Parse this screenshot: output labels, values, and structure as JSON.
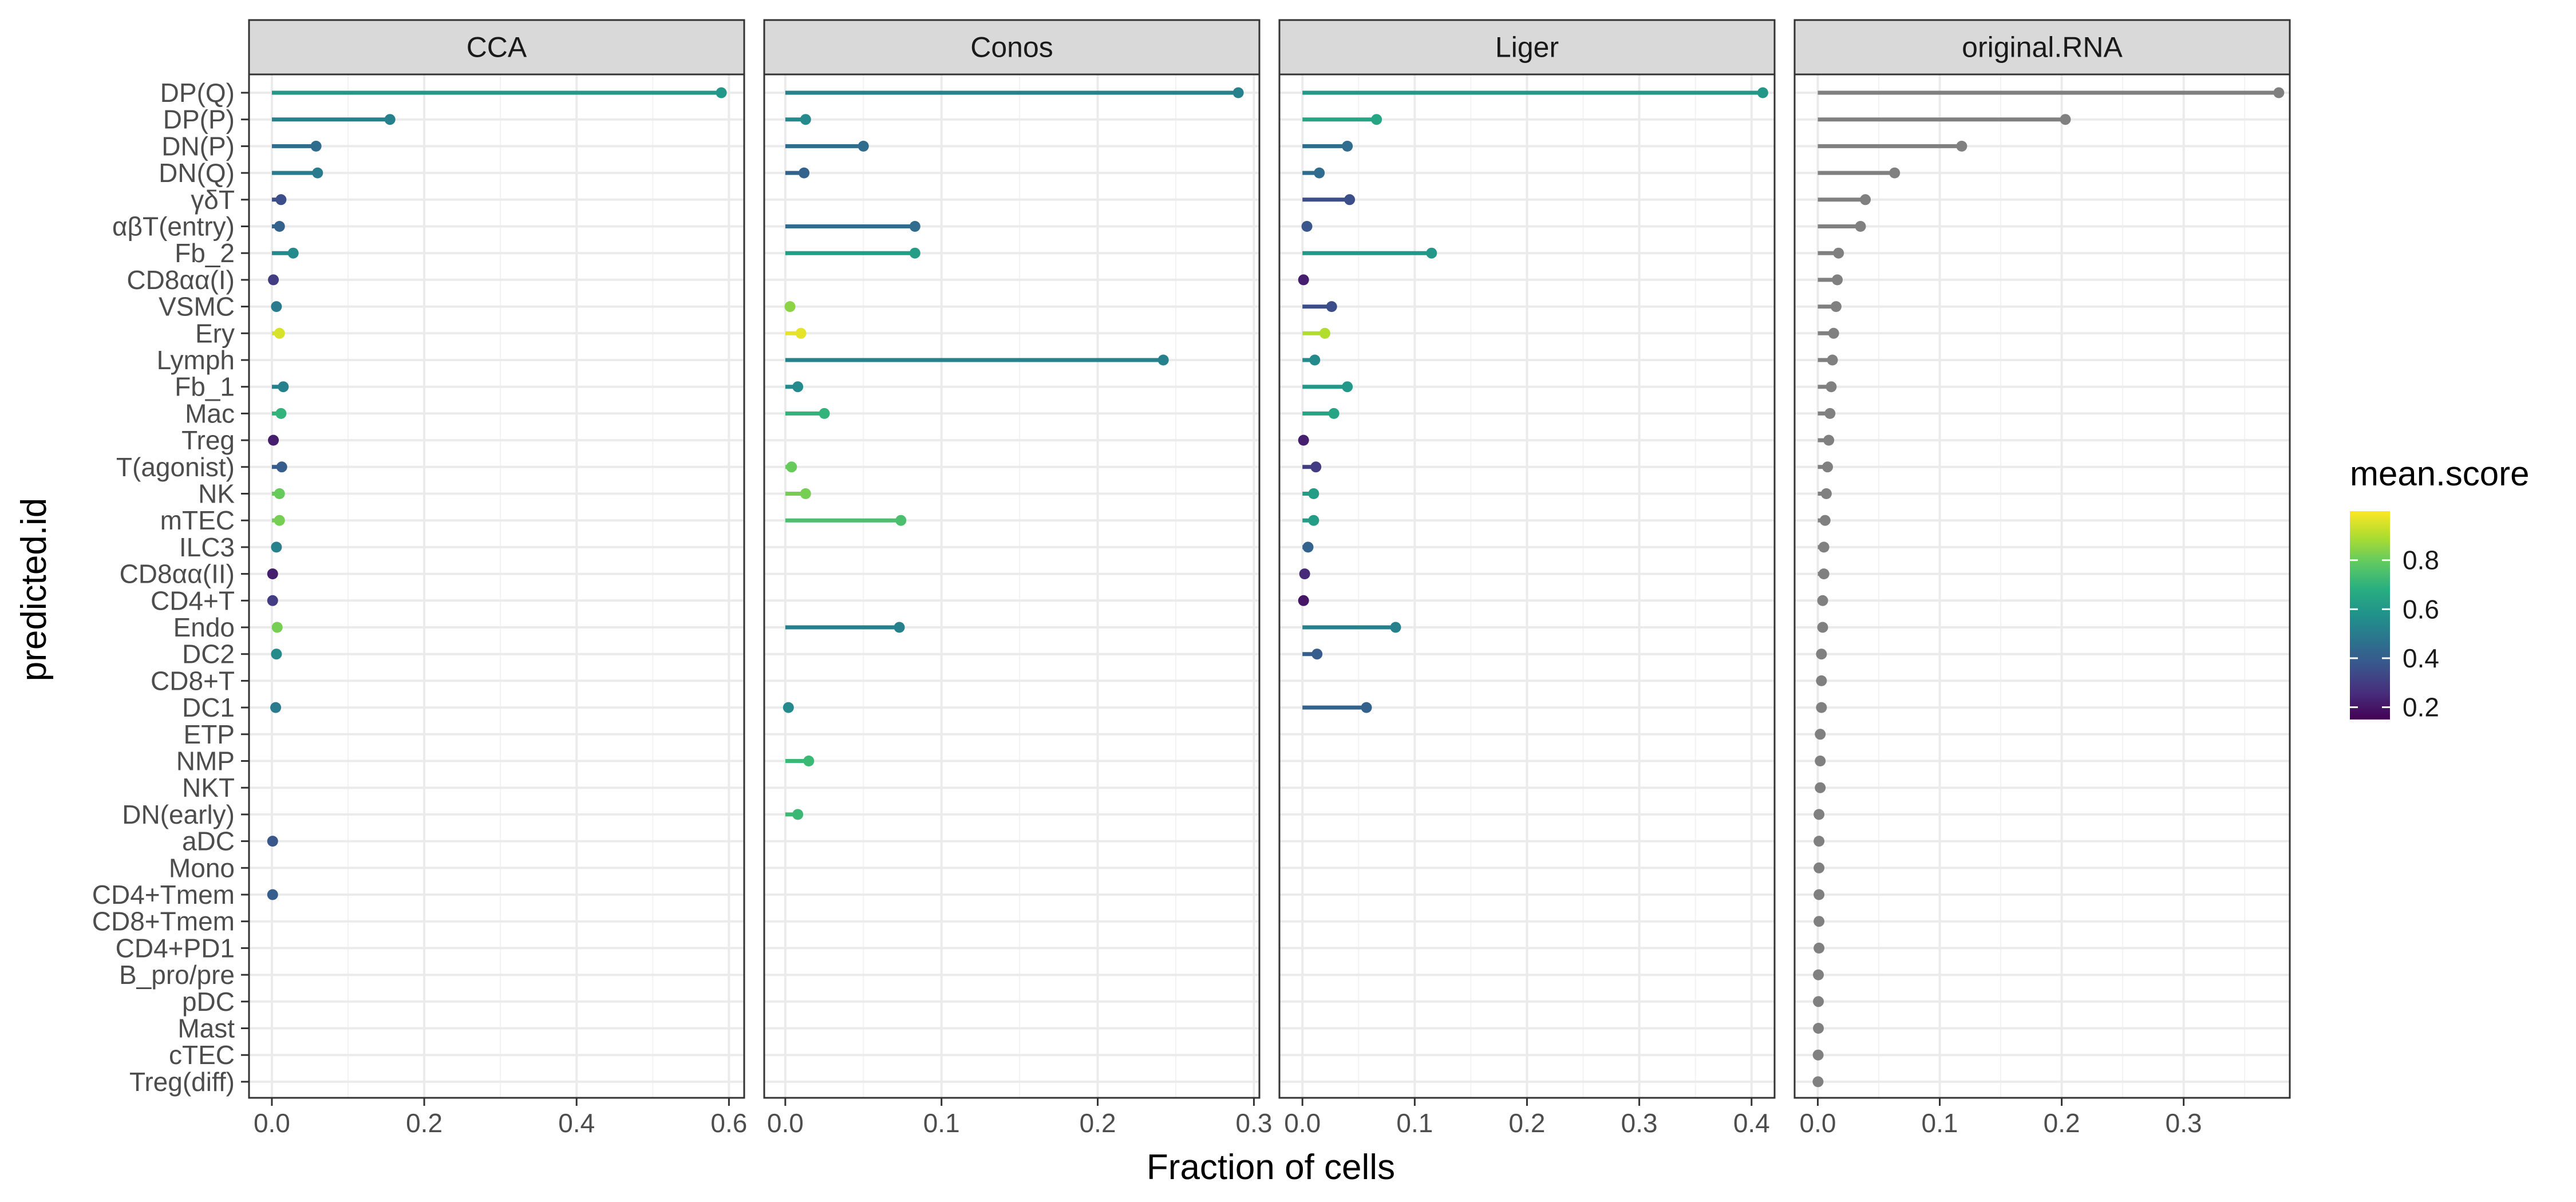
{
  "chart_data": {
    "type": "lollipop",
    "xlabel": "Fraction of cells",
    "ylabel": "predicted.id",
    "legend": {
      "title": "mean.score",
      "placement": "right",
      "ticks": [
        0.2,
        0.4,
        0.6,
        0.8
      ],
      "range": [
        0.15,
        1.0
      ]
    },
    "grid": true,
    "categories": [
      "DP(Q)",
      "DP(P)",
      "DN(P)",
      "DN(Q)",
      "γδT",
      "αβT(entry)",
      "Fb_2",
      "CD8αα(I)",
      "VSMC",
      "Ery",
      "Lymph",
      "Fb_1",
      "Mac",
      "Treg",
      "T(agonist)",
      "NK",
      "mTEC",
      "ILC3",
      "CD8αα(II)",
      "CD4+T",
      "Endo",
      "DC2",
      "CD8+T",
      "DC1",
      "ETP",
      "NMP",
      "NKT",
      "DN(early)",
      "aDC",
      "Mono",
      "CD4+Tmem",
      "CD8+Tmem",
      "CD4+PD1",
      "B_pro/pre",
      "pDC",
      "Mast",
      "cTEC",
      "Treg(diff)"
    ],
    "panels": [
      {
        "name": "CCA",
        "xlim": [
          -0.03,
          0.62
        ],
        "xticks": [
          0.0,
          0.2,
          0.4,
          0.6
        ],
        "xtick_labels": [
          "0.0",
          "0.2",
          "0.4",
          "0.6"
        ],
        "points": [
          {
            "y": "DP(Q)",
            "x": 0.59,
            "score": 0.6
          },
          {
            "y": "DP(P)",
            "x": 0.155,
            "score": 0.52
          },
          {
            "y": "DN(P)",
            "x": 0.058,
            "score": 0.45
          },
          {
            "y": "DN(Q)",
            "x": 0.06,
            "score": 0.5
          },
          {
            "y": "γδT",
            "x": 0.012,
            "score": 0.35
          },
          {
            "y": "αβT(entry)",
            "x": 0.01,
            "score": 0.42
          },
          {
            "y": "Fb_2",
            "x": 0.028,
            "score": 0.55
          },
          {
            "y": "CD8αα(I)",
            "x": 0.002,
            "score": 0.3
          },
          {
            "y": "VSMC",
            "x": 0.006,
            "score": 0.5
          },
          {
            "y": "Ery",
            "x": 0.01,
            "score": 0.95
          },
          {
            "y": "Fb_1",
            "x": 0.015,
            "score": 0.52
          },
          {
            "y": "Mac",
            "x": 0.012,
            "score": 0.7
          },
          {
            "y": "Treg",
            "x": 0.002,
            "score": 0.22
          },
          {
            "y": "T(agonist)",
            "x": 0.013,
            "score": 0.4
          },
          {
            "y": "NK",
            "x": 0.01,
            "score": 0.8
          },
          {
            "y": "mTEC",
            "x": 0.01,
            "score": 0.82
          },
          {
            "y": "ILC3",
            "x": 0.006,
            "score": 0.52
          },
          {
            "y": "CD8αα(II)",
            "x": 0.001,
            "score": 0.22
          },
          {
            "y": "CD4+T",
            "x": 0.001,
            "score": 0.3
          },
          {
            "y": "Endo",
            "x": 0.007,
            "score": 0.82
          },
          {
            "y": "DC2",
            "x": 0.006,
            "score": 0.55
          },
          {
            "y": "DC1",
            "x": 0.005,
            "score": 0.5
          },
          {
            "y": "aDC",
            "x": 0.001,
            "score": 0.38
          },
          {
            "y": "CD4+Tmem",
            "x": 0.001,
            "score": 0.4
          }
        ]
      },
      {
        "name": "Conos",
        "xlim": [
          -0.0135,
          0.3035
        ],
        "xticks": [
          0.0,
          0.1,
          0.2,
          0.3
        ],
        "xtick_labels": [
          "0.0",
          "0.1",
          "0.2",
          "0.3"
        ],
        "points": [
          {
            "y": "DP(Q)",
            "x": 0.29,
            "score": 0.52
          },
          {
            "y": "DP(P)",
            "x": 0.013,
            "score": 0.55
          },
          {
            "y": "DN(P)",
            "x": 0.05,
            "score": 0.45
          },
          {
            "y": "DN(Q)",
            "x": 0.012,
            "score": 0.42
          },
          {
            "y": "αβT(entry)",
            "x": 0.083,
            "score": 0.45
          },
          {
            "y": "Fb_2",
            "x": 0.083,
            "score": 0.62
          },
          {
            "y": "VSMC",
            "x": 0.003,
            "score": 0.85
          },
          {
            "y": "Ery",
            "x": 0.01,
            "score": 0.97
          },
          {
            "y": "Lymph",
            "x": 0.242,
            "score": 0.52
          },
          {
            "y": "Fb_1",
            "x": 0.008,
            "score": 0.55
          },
          {
            "y": "Mac",
            "x": 0.025,
            "score": 0.7
          },
          {
            "y": "T(agonist)",
            "x": 0.004,
            "score": 0.8
          },
          {
            "y": "NK",
            "x": 0.013,
            "score": 0.82
          },
          {
            "y": "mTEC",
            "x": 0.074,
            "score": 0.75
          },
          {
            "y": "Endo",
            "x": 0.073,
            "score": 0.52
          },
          {
            "y": "DC1",
            "x": 0.002,
            "score": 0.55
          },
          {
            "y": "NMP",
            "x": 0.015,
            "score": 0.72
          },
          {
            "y": "DN(early)",
            "x": 0.008,
            "score": 0.72
          }
        ]
      },
      {
        "name": "Liger",
        "xlim": [
          -0.0205,
          0.4205
        ],
        "xticks": [
          0.0,
          0.1,
          0.2,
          0.3,
          0.4
        ],
        "xtick_labels": [
          "0.0",
          "0.1",
          "0.2",
          "0.3",
          "0.4"
        ],
        "points": [
          {
            "y": "DP(Q)",
            "x": 0.41,
            "score": 0.6
          },
          {
            "y": "DP(P)",
            "x": 0.066,
            "score": 0.65
          },
          {
            "y": "DN(P)",
            "x": 0.04,
            "score": 0.45
          },
          {
            "y": "DN(Q)",
            "x": 0.015,
            "score": 0.45
          },
          {
            "y": "γδT",
            "x": 0.042,
            "score": 0.35
          },
          {
            "y": "αβT(entry)",
            "x": 0.004,
            "score": 0.38
          },
          {
            "y": "Fb_2",
            "x": 0.115,
            "score": 0.6
          },
          {
            "y": "CD8αα(I)",
            "x": 0.001,
            "score": 0.22
          },
          {
            "y": "VSMC",
            "x": 0.026,
            "score": 0.35
          },
          {
            "y": "Ery",
            "x": 0.02,
            "score": 0.9
          },
          {
            "y": "Lymph",
            "x": 0.011,
            "score": 0.55
          },
          {
            "y": "Fb_1",
            "x": 0.04,
            "score": 0.6
          },
          {
            "y": "Mac",
            "x": 0.028,
            "score": 0.65
          },
          {
            "y": "Treg",
            "x": 0.001,
            "score": 0.22
          },
          {
            "y": "T(agonist)",
            "x": 0.012,
            "score": 0.3
          },
          {
            "y": "NK",
            "x": 0.01,
            "score": 0.62
          },
          {
            "y": "mTEC",
            "x": 0.01,
            "score": 0.62
          },
          {
            "y": "ILC3",
            "x": 0.005,
            "score": 0.42
          },
          {
            "y": "CD8αα(II)",
            "x": 0.002,
            "score": 0.25
          },
          {
            "y": "CD4+T",
            "x": 0.001,
            "score": 0.2
          },
          {
            "y": "Endo",
            "x": 0.083,
            "score": 0.52
          },
          {
            "y": "DC2",
            "x": 0.013,
            "score": 0.4
          },
          {
            "y": "DC1",
            "x": 0.057,
            "score": 0.42
          }
        ]
      },
      {
        "name": "original.RNA",
        "xlim": [
          -0.019,
          0.387
        ],
        "xticks": [
          0.0,
          0.1,
          0.2,
          0.3
        ],
        "xtick_labels": [
          "0.0",
          "0.1",
          "0.2",
          "0.3"
        ],
        "color": "#808080",
        "points": [
          {
            "y": "DP(Q)",
            "x": 0.378
          },
          {
            "y": "DP(P)",
            "x": 0.203
          },
          {
            "y": "DN(P)",
            "x": 0.118
          },
          {
            "y": "DN(Q)",
            "x": 0.063
          },
          {
            "y": "γδT",
            "x": 0.039
          },
          {
            "y": "αβT(entry)",
            "x": 0.035
          },
          {
            "y": "Fb_2",
            "x": 0.017
          },
          {
            "y": "CD8αα(I)",
            "x": 0.016
          },
          {
            "y": "VSMC",
            "x": 0.015
          },
          {
            "y": "Ery",
            "x": 0.013
          },
          {
            "y": "Lymph",
            "x": 0.012
          },
          {
            "y": "Fb_1",
            "x": 0.011
          },
          {
            "y": "Mac",
            "x": 0.01
          },
          {
            "y": "Treg",
            "x": 0.009
          },
          {
            "y": "T(agonist)",
            "x": 0.008
          },
          {
            "y": "NK",
            "x": 0.007
          },
          {
            "y": "mTEC",
            "x": 0.006
          },
          {
            "y": "ILC3",
            "x": 0.005
          },
          {
            "y": "CD8αα(II)",
            "x": 0.005
          },
          {
            "y": "CD4+T",
            "x": 0.004
          },
          {
            "y": "Endo",
            "x": 0.004
          },
          {
            "y": "DC2",
            "x": 0.003
          },
          {
            "y": "CD8+T",
            "x": 0.003
          },
          {
            "y": "DC1",
            "x": 0.003
          },
          {
            "y": "ETP",
            "x": 0.002
          },
          {
            "y": "NMP",
            "x": 0.002
          },
          {
            "y": "NKT",
            "x": 0.002
          },
          {
            "y": "DN(early)",
            "x": 0.001
          },
          {
            "y": "aDC",
            "x": 0.001
          },
          {
            "y": "Mono",
            "x": 0.001
          },
          {
            "y": "CD4+Tmem",
            "x": 0.001
          },
          {
            "y": "CD8+Tmem",
            "x": 0.001
          },
          {
            "y": "CD4+PD1",
            "x": 0.001
          },
          {
            "y": "B_pro/pre",
            "x": 0.0005
          },
          {
            "y": "pDC",
            "x": 0.0005
          },
          {
            "y": "Mast",
            "x": 0.0005
          },
          {
            "y": "cTEC",
            "x": 0.0003
          },
          {
            "y": "Treg(diff)",
            "x": 0.0002
          }
        ]
      }
    ]
  }
}
